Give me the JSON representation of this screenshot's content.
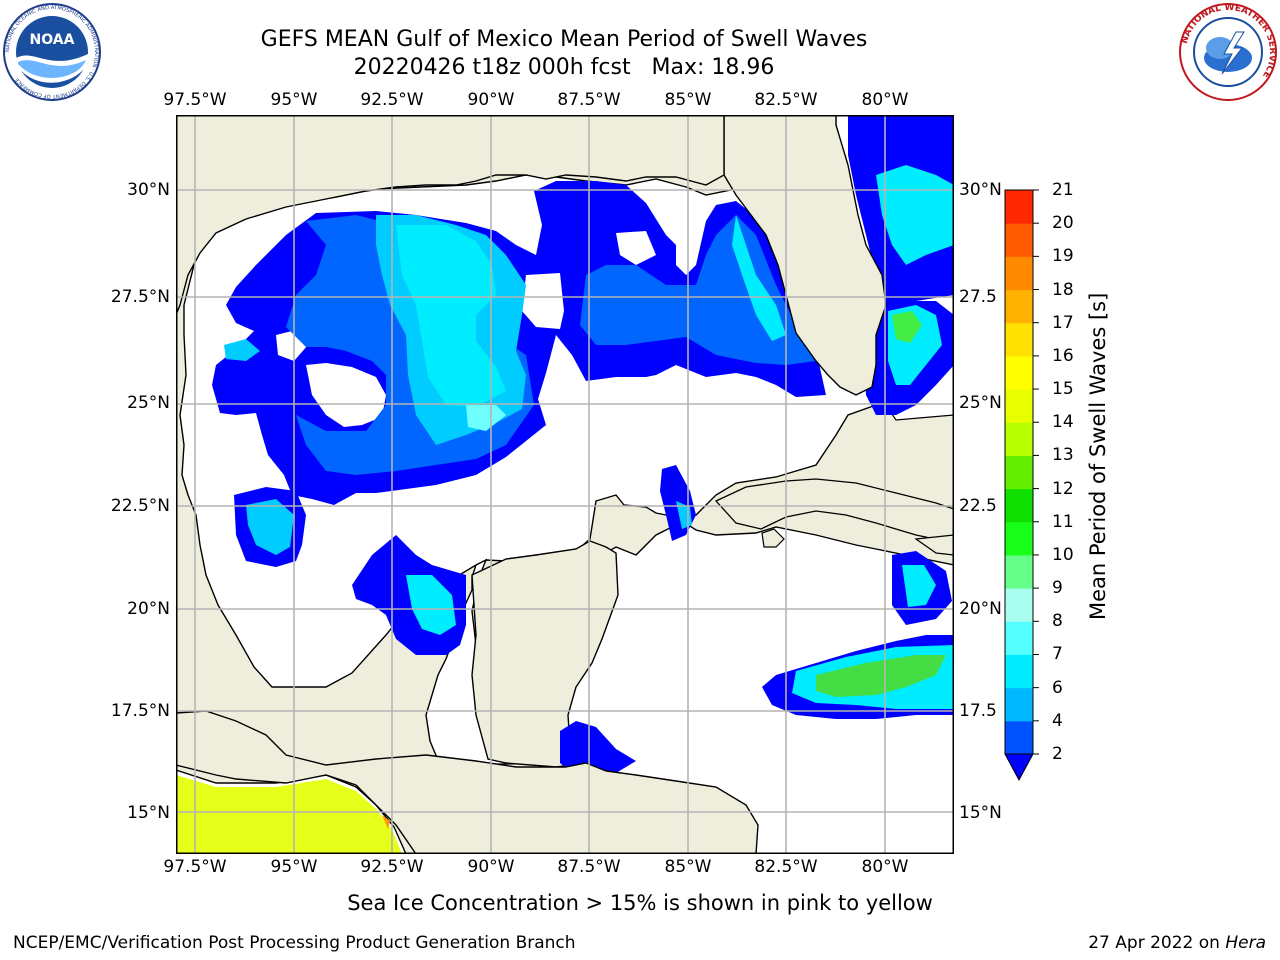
{
  "title": {
    "line1": "GEFS MEAN Gulf of Mexico Mean Period of Swell Waves",
    "line2": "20220426 t18z 000h fcst   Max: 18.96"
  },
  "logos": {
    "left": "NOAA",
    "left_ring": "NATIONAL OCEANIC AND ATMOSPHERIC ADMINISTRATION · U.S. DEPARTMENT OF COMMERCE",
    "right_ring": "NATIONAL WEATHER SERVICE"
  },
  "map": {
    "lon_ticks": [
      "97.5°W",
      "95°W",
      "92.5°W",
      "90°W",
      "87.5°W",
      "85°W",
      "82.5°W",
      "80°W"
    ],
    "lat_ticks_left": [
      "30°N",
      "27.5°N",
      "25°N",
      "22.5°N",
      "20°N",
      "17.5°N",
      "15°N"
    ],
    "lat_ticks_right": [
      "30°N",
      "27.5",
      "25°N",
      "22.5",
      "20°N",
      "17.5",
      "15°N"
    ],
    "extent": {
      "lon": [
        -98,
        -78.3
      ],
      "lat": [
        14,
        31.7
      ]
    },
    "colors": {
      "land": "#efeedc",
      "coast": "#000000",
      "grid": "#b4b4b4",
      "no_data_sea": "#ffffff"
    }
  },
  "colorbar": {
    "label": "Mean Period of Swell Waves [s]",
    "ticks": [
      "2",
      "4",
      "6",
      "7",
      "8",
      "9",
      "10",
      "11",
      "12",
      "13",
      "14",
      "15",
      "16",
      "17",
      "18",
      "19",
      "20",
      "21"
    ],
    "colors": [
      "#0052ff",
      "#00b8ff",
      "#00ecff",
      "#55ffff",
      "#a8fff0",
      "#66ff88",
      "#1aff1a",
      "#10e000",
      "#66ee00",
      "#b8ff00",
      "#e8ff00",
      "#ffff00",
      "#ffe000",
      "#ffb000",
      "#ff8a00",
      "#ff5a00",
      "#ff2800",
      "#ff0000"
    ],
    "under_color": "#0000ff"
  },
  "footnote": "Sea Ice Concentration > 15% is shown in pink to yellow",
  "footer": {
    "left": "NCEP/EMC/Verification Post Processing Product Generation Branch",
    "right_date": "27 Apr 2022 on ",
    "right_host": "Hera"
  }
}
